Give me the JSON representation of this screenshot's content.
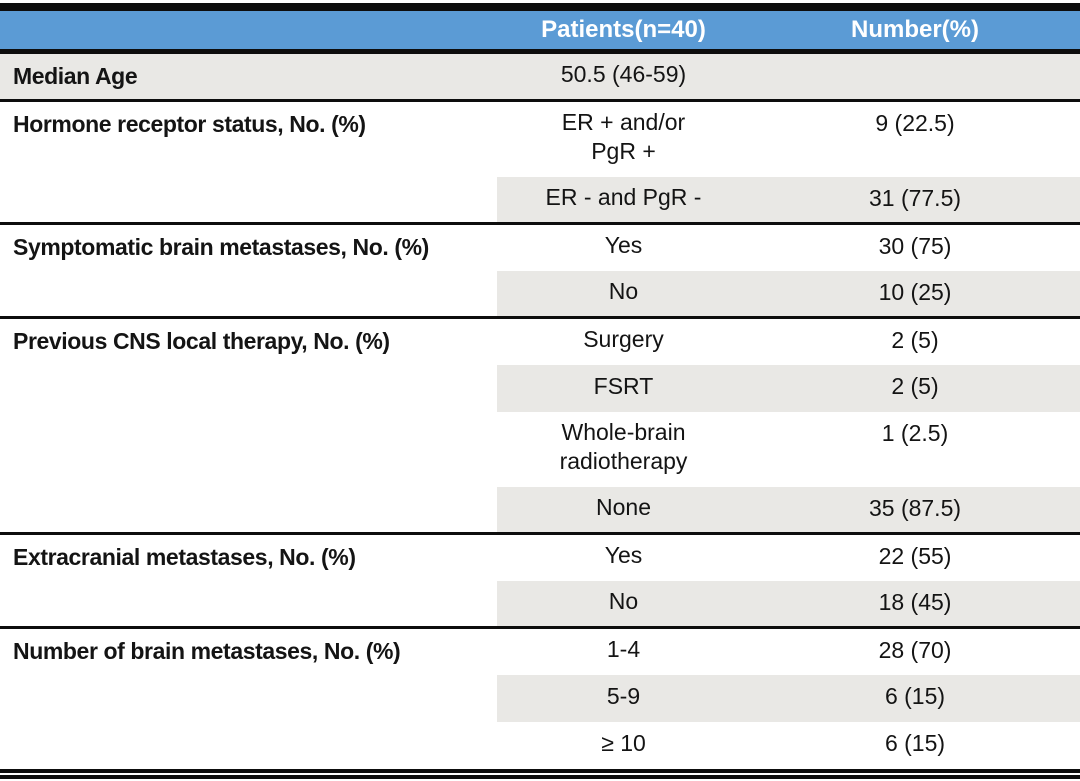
{
  "colors": {
    "header_bg": "#5b9bd5",
    "header_text": "#ffffff",
    "band_bg": "#e9e8e5",
    "rule_black": "#0d0d0d"
  },
  "header": {
    "col_label": "",
    "col_patients": "Patients(n=40)",
    "col_number": "Number(%)"
  },
  "table": {
    "sections": [
      {
        "label": "Median Age",
        "rows": [
          {
            "sub": "50.5 (46-59)",
            "value": ""
          }
        ]
      },
      {
        "label": "Hormone receptor status, No. (%)",
        "rows": [
          {
            "sub": "ER + and/or\nPgR +",
            "value": "9 (22.5)"
          },
          {
            "sub": "ER - and PgR -",
            "value": "31 (77.5)"
          }
        ]
      },
      {
        "label": "Symptomatic brain metastases, No. (%)",
        "rows": [
          {
            "sub": "Yes",
            "value": "30 (75)"
          },
          {
            "sub": "No",
            "value": "10 (25)"
          }
        ]
      },
      {
        "label": "Previous CNS local therapy, No. (%)",
        "rows": [
          {
            "sub": "Surgery",
            "value": "2 (5)"
          },
          {
            "sub": "FSRT",
            "value": "2 (5)"
          },
          {
            "sub": "Whole-brain\nradiotherapy",
            "value": "1 (2.5)"
          },
          {
            "sub": "None",
            "value": "35 (87.5)"
          }
        ]
      },
      {
        "label": "Extracranial metastases, No. (%)",
        "rows": [
          {
            "sub": "Yes",
            "value": "22 (55)"
          },
          {
            "sub": "No",
            "value": "18 (45)"
          }
        ]
      },
      {
        "label": "Number of brain metastases, No. (%)",
        "rows": [
          {
            "sub": "1-4",
            "value": "28 (70)"
          },
          {
            "sub": "5-9",
            "value": "6 (15)"
          },
          {
            "sub": "≥ 10",
            "value": "6 (15)"
          }
        ]
      }
    ]
  }
}
